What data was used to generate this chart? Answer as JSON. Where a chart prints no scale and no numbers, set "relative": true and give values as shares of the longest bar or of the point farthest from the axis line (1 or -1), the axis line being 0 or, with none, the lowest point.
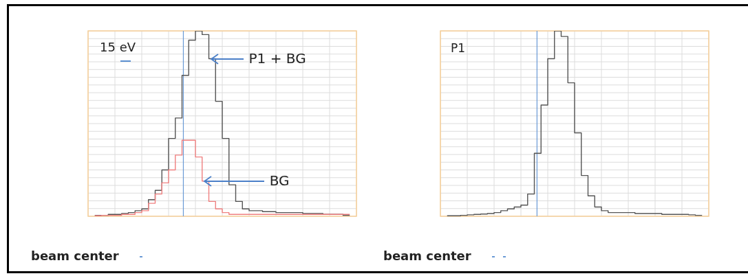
{
  "chart_data": [
    {
      "type": "step",
      "relative": true,
      "grid": true,
      "annotations": [
        "15 eV",
        "beam center"
      ],
      "categories": [
        null,
        null,
        null,
        null,
        null,
        null,
        null,
        null,
        null,
        null,
        null,
        null,
        null,
        null,
        null,
        null,
        null,
        null,
        null,
        null,
        null,
        null,
        null,
        null,
        null,
        null,
        null,
        null,
        null,
        null,
        null,
        null,
        null,
        null,
        null,
        null,
        null,
        null,
        null,
        null,
        null
      ],
      "series": [
        {
          "name": "P1 + BG",
          "color": "#555555",
          "values": [
            null,
            0.005,
            0.005,
            0.01,
            0.01,
            0.015,
            0.02,
            0.03,
            0.04,
            0.09,
            0.14,
            0.25,
            0.42,
            0.53,
            0.76,
            0.95,
            1.0,
            0.98,
            0.85,
            0.62,
            0.42,
            0.17,
            0.08,
            0.04,
            0.03,
            0.03,
            0.025,
            0.025,
            0.02,
            0.02,
            0.02,
            0.02,
            0.015,
            0.015,
            0.015,
            0.01,
            0.01,
            0.01,
            0.005,
            0.005,
            null
          ]
        },
        {
          "name": "BG",
          "color": "#f08080",
          "values": [
            null,
            0.003,
            0.005,
            0.005,
            0.005,
            0.01,
            0.01,
            0.02,
            0.03,
            0.07,
            0.12,
            0.18,
            0.25,
            0.33,
            0.41,
            0.41,
            0.32,
            0.19,
            0.08,
            0.04,
            0.02,
            0.01,
            0.01,
            0.01,
            0.01,
            0.01,
            0.01,
            0.01,
            0.01,
            0.01,
            0.01,
            0.01,
            0.01,
            0.01,
            0.01,
            0.01,
            0.01,
            0.01,
            0.01,
            0.01,
            null
          ]
        }
      ]
    },
    {
      "type": "step",
      "relative": true,
      "grid": true,
      "annotations": [
        "beam center"
      ],
      "categories": [
        null,
        null,
        null,
        null,
        null,
        null,
        null,
        null,
        null,
        null,
        null,
        null,
        null,
        null,
        null,
        null,
        null,
        null,
        null,
        null,
        null,
        null,
        null,
        null,
        null,
        null,
        null,
        null,
        null,
        null,
        null,
        null,
        null,
        null,
        null,
        null,
        null,
        null,
        null,
        null,
        null
      ],
      "series": [
        {
          "name": "P1",
          "color": "#555555",
          "values": [
            null,
            0.003,
            0.003,
            0.005,
            0.008,
            0.01,
            0.012,
            0.015,
            0.02,
            0.03,
            0.04,
            0.05,
            0.06,
            0.12,
            0.34,
            0.6,
            0.85,
            1.0,
            0.97,
            0.72,
            0.45,
            0.22,
            0.11,
            0.05,
            0.03,
            0.02,
            0.02,
            0.02,
            0.02,
            0.015,
            0.015,
            0.015,
            0.015,
            0.01,
            0.01,
            0.01,
            0.01,
            0.008,
            0.005,
            0.005,
            null
          ]
        }
      ]
    }
  ]
}
